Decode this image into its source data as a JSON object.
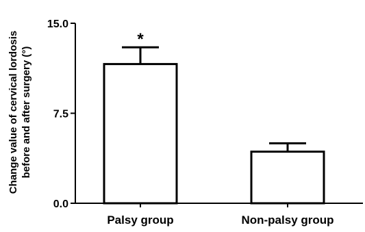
{
  "chart_data": {
    "type": "bar",
    "title": "",
    "xlabel": "",
    "ylabel_lines": [
      "Change value of cervical lordosis",
      "before and after surgery (°)"
    ],
    "categories": [
      "Palsy group",
      "Non-palsy group"
    ],
    "values": [
      11.6,
      4.3
    ],
    "error_upper": [
      1.4,
      0.7
    ],
    "annotations": [
      "*",
      ""
    ],
    "ylim": [
      0.0,
      15.0
    ],
    "yticks": [
      0.0,
      7.5,
      15.0
    ],
    "ytick_labels": [
      "0.0",
      "7.5",
      "15.0"
    ],
    "grid": false,
    "legend": "none",
    "colors": {
      "bar_fill": "#ffffff",
      "stroke": "#000000"
    }
  }
}
